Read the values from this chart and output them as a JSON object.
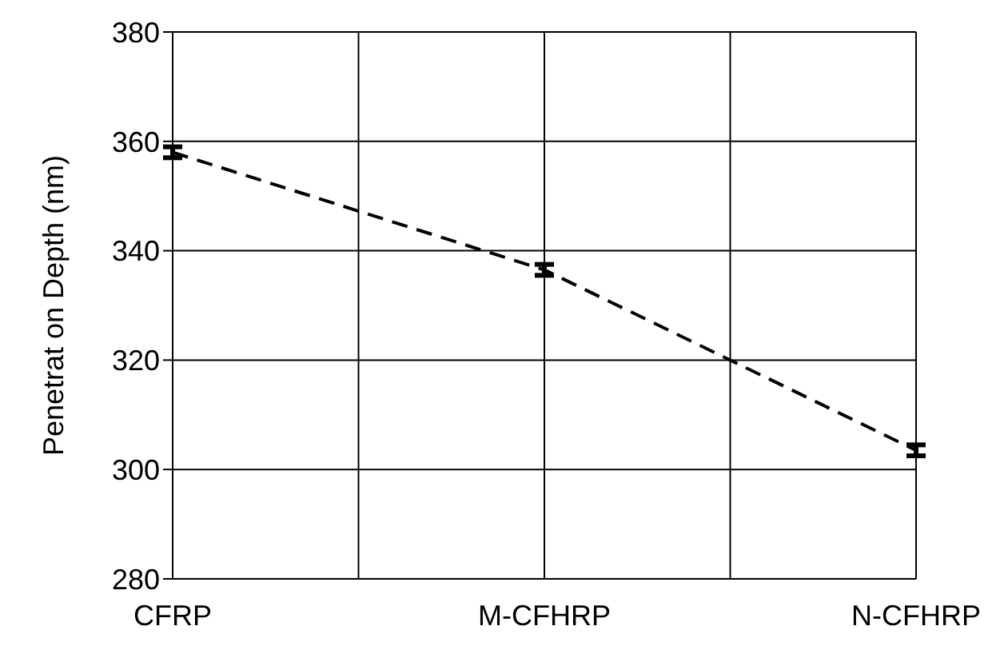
{
  "chart_data": {
    "type": "line",
    "ylabel": "Penetrat on Depth (nm)",
    "categories": [
      "CFRP",
      "M-CFHRP",
      "N-CFHRP"
    ],
    "series": [
      {
        "color": "#000000",
        "values": [
          358,
          336.5,
          303.5
        ],
        "errors": [
          1,
          1,
          1
        ]
      }
    ],
    "ylim": [
      280,
      380
    ],
    "yticks": [
      280,
      300,
      320,
      340,
      360,
      380
    ],
    "grid": true,
    "marker": "none",
    "line_style": "dashed"
  }
}
